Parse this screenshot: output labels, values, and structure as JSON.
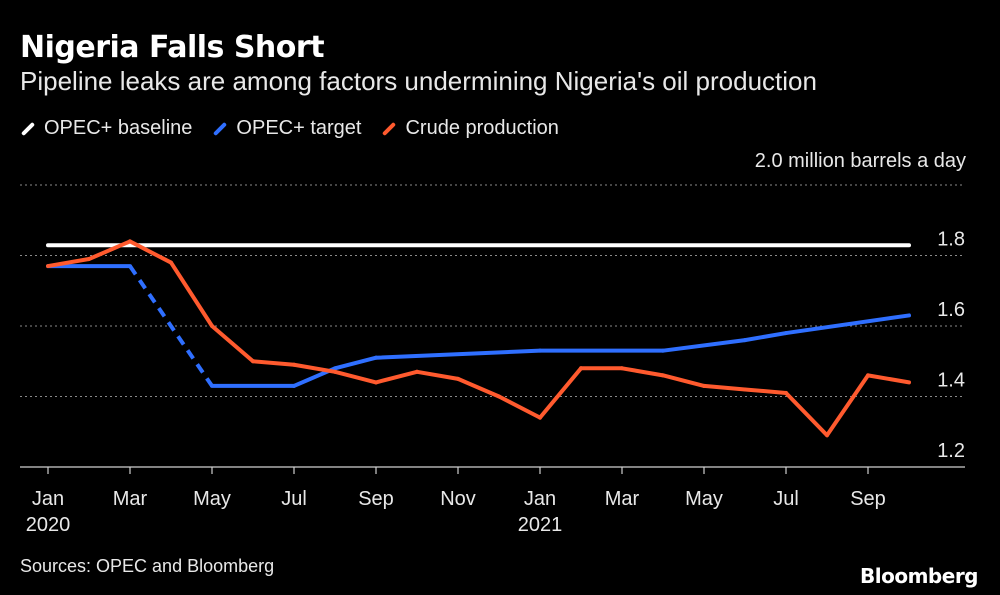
{
  "header": {
    "title": "Nigeria Falls Short",
    "subtitle": "Pipeline leaks are among factors undermining Nigeria's oil production"
  },
  "legend": {
    "items": [
      {
        "label": "OPEC+ baseline",
        "color": "#ffffff"
      },
      {
        "label": "OPEC+ target",
        "color": "#2f6fff"
      },
      {
        "label": "Crude production",
        "color": "#ff5a2e"
      }
    ]
  },
  "footer": {
    "source": "Sources: OPEC and Bloomberg",
    "brand": "Bloomberg"
  },
  "chart_data": {
    "type": "line",
    "title": "Nigeria Falls Short",
    "unit_label": "2.0 million barrels a day",
    "ylim": [
      1.2,
      2.0
    ],
    "yticks": [
      {
        "value": 1.2,
        "label": "1.2"
      },
      {
        "value": 1.4,
        "label": "1.4"
      },
      {
        "value": 1.6,
        "label": "1.6"
      },
      {
        "value": 1.8,
        "label": "1.8"
      },
      {
        "value": 2.0,
        "label": ""
      }
    ],
    "xlim": [
      0,
      21
    ],
    "xticks": [
      {
        "index": 0,
        "label": "Jan",
        "sublabel": "2020"
      },
      {
        "index": 2,
        "label": "Mar",
        "sublabel": ""
      },
      {
        "index": 4,
        "label": "May",
        "sublabel": ""
      },
      {
        "index": 6,
        "label": "Jul",
        "sublabel": ""
      },
      {
        "index": 8,
        "label": "Sep",
        "sublabel": ""
      },
      {
        "index": 10,
        "label": "Nov",
        "sublabel": ""
      },
      {
        "index": 12,
        "label": "Jan",
        "sublabel": "2021"
      },
      {
        "index": 14,
        "label": "Mar",
        "sublabel": ""
      },
      {
        "index": 16,
        "label": "May",
        "sublabel": ""
      },
      {
        "index": 18,
        "label": "Jul",
        "sublabel": ""
      },
      {
        "index": 20,
        "label": "Sep",
        "sublabel": ""
      }
    ],
    "series": [
      {
        "name": "OPEC+ baseline",
        "color": "#ffffff",
        "points": [
          [
            0,
            1.829
          ],
          [
            21,
            1.829
          ]
        ]
      },
      {
        "name": "OPEC+ target",
        "color": "#2f6fff",
        "points": [
          [
            0,
            1.77
          ],
          [
            2,
            1.77
          ],
          [
            4,
            1.43
          ],
          [
            6,
            1.43
          ],
          [
            7,
            1.48
          ],
          [
            8,
            1.51
          ],
          [
            12,
            1.53
          ],
          [
            15,
            1.53
          ],
          [
            17,
            1.56
          ],
          [
            18,
            1.58
          ],
          [
            21,
            1.63
          ]
        ],
        "dashed_segments": [
          [
            2,
            4
          ]
        ]
      },
      {
        "name": "Crude production",
        "color": "#ff5a2e",
        "points": [
          [
            0,
            1.77
          ],
          [
            1,
            1.79
          ],
          [
            2,
            1.84
          ],
          [
            3,
            1.78
          ],
          [
            4,
            1.6
          ],
          [
            5,
            1.5
          ],
          [
            6,
            1.49
          ],
          [
            7,
            1.47
          ],
          [
            8,
            1.44
          ],
          [
            9,
            1.47
          ],
          [
            10,
            1.45
          ],
          [
            11,
            1.4
          ],
          [
            12,
            1.34
          ],
          [
            13,
            1.48
          ],
          [
            14,
            1.48
          ],
          [
            15,
            1.46
          ],
          [
            16,
            1.43
          ],
          [
            17,
            1.42
          ],
          [
            18,
            1.41
          ],
          [
            19,
            1.29
          ],
          [
            20,
            1.46
          ],
          [
            21,
            1.44
          ]
        ]
      }
    ]
  }
}
